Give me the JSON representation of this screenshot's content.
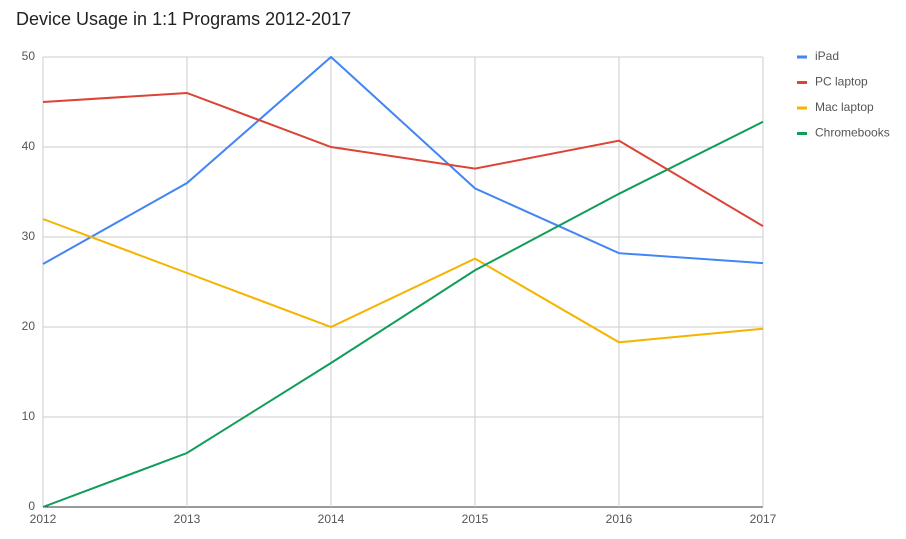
{
  "chart_data": {
    "type": "line",
    "title": "Device Usage in 1:1 Programs 2012-2017",
    "x": [
      2012,
      2013,
      2014,
      2015,
      2016,
      2017
    ],
    "xlim": [
      2012,
      2017
    ],
    "xticks": [
      2012,
      2013,
      2014,
      2015,
      2016,
      2017
    ],
    "ylim": [
      0,
      50
    ],
    "yticks": [
      0,
      10,
      20,
      30,
      40,
      50
    ],
    "grid": true,
    "legend": "right",
    "series": [
      {
        "name": "iPad",
        "color": "#4285f4",
        "values": [
          27,
          36,
          50,
          35.4,
          28.2,
          27.1
        ]
      },
      {
        "name": "PC laptop",
        "color": "#db4437",
        "values": [
          45,
          46,
          40,
          37.6,
          40.7,
          31.2
        ]
      },
      {
        "name": "Mac laptop",
        "color": "#f4b400",
        "values": [
          32,
          26,
          20,
          27.6,
          18.3,
          19.8
        ]
      },
      {
        "name": "Chromebooks",
        "color": "#0f9d58",
        "values": [
          0,
          6,
          16,
          26.3,
          34.8,
          42.8
        ]
      }
    ]
  }
}
